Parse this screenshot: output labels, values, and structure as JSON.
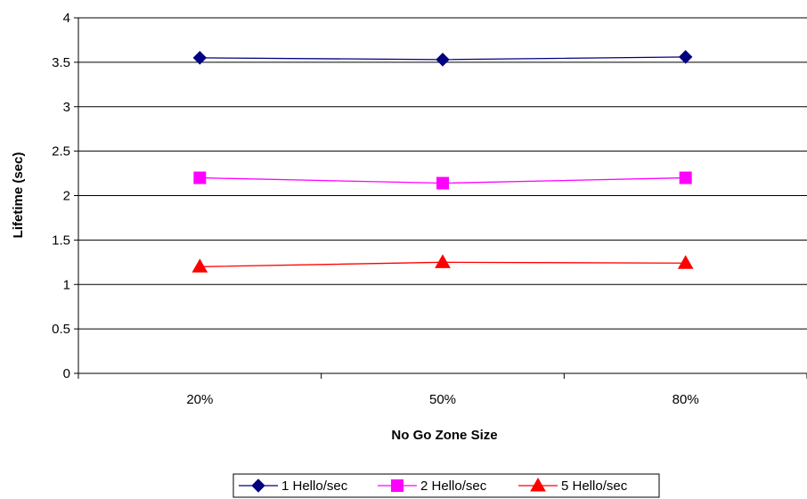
{
  "chart_data": {
    "type": "line",
    "categories": [
      "20%",
      "50%",
      "80%"
    ],
    "series": [
      {
        "name": "1 Hello/sec",
        "values": [
          3.55,
          3.53,
          3.56
        ],
        "color": "#000080",
        "marker": "diamond"
      },
      {
        "name": "2 Hello/sec",
        "values": [
          2.2,
          2.14,
          2.2
        ],
        "color": "#ff00ff",
        "marker": "square"
      },
      {
        "name": "5 Hello/sec",
        "values": [
          1.2,
          1.25,
          1.24
        ],
        "color": "#ff0000",
        "marker": "triangle"
      }
    ],
    "xlabel": "No Go Zone Size",
    "ylabel": "Lifetime (sec)",
    "ylim": [
      0,
      4
    ],
    "yticks": [
      "0",
      "0.5",
      "1",
      "1.5",
      "2",
      "2.5",
      "3",
      "3.5",
      "4"
    ],
    "grid": true,
    "legend_position": "bottom"
  }
}
